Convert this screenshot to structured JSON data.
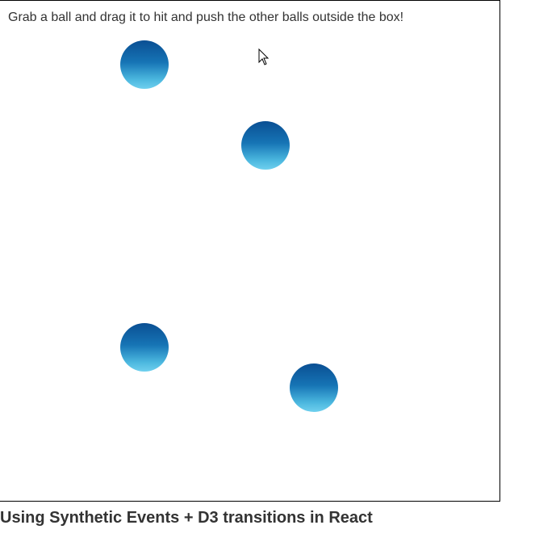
{
  "stage": {
    "instructions": "Grab a ball and drag it to hit and push the other balls outside the box!",
    "ball_count": 4,
    "ball_color_top": "#0a4f93",
    "ball_color_bottom": "#6fd0ee"
  },
  "caption": {
    "title": "Using Synthetic Events + D3 transitions in React"
  },
  "cursor": {
    "icon": "arrow-cursor-icon"
  }
}
